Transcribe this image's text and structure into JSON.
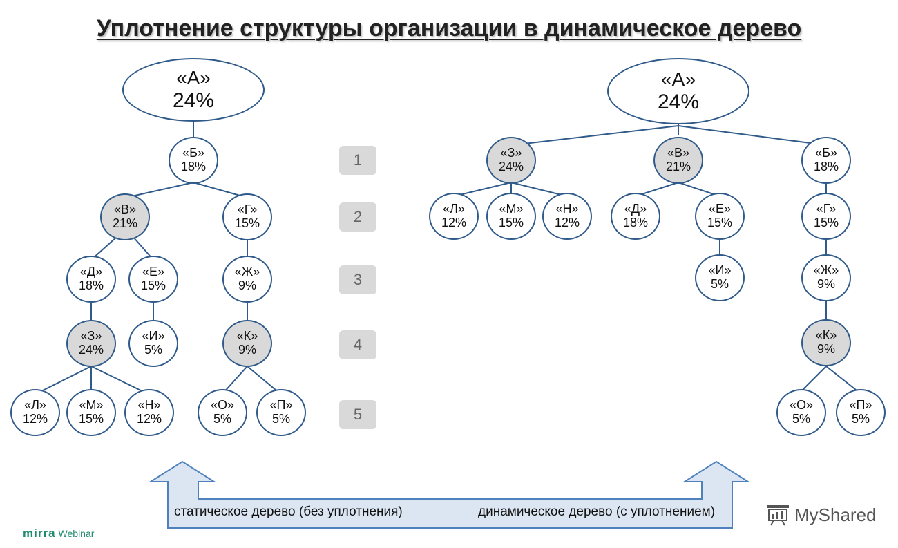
{
  "title": "Уплотнение структуры организации в динамическое дерево",
  "left_tree": {
    "root": {
      "name": "«А»",
      "value": "24%"
    },
    "b": {
      "name": "«Б»",
      "value": "18%"
    },
    "v": {
      "name": "«В»",
      "value": "21%"
    },
    "g": {
      "name": "«Г»",
      "value": "15%"
    },
    "d": {
      "name": "«Д»",
      "value": "18%"
    },
    "e": {
      "name": "«Е»",
      "value": "15%"
    },
    "zh": {
      "name": "«Ж»",
      "value": "9%"
    },
    "z": {
      "name": "«З»",
      "value": "24%"
    },
    "i": {
      "name": "«И»",
      "value": "5%"
    },
    "k": {
      "name": "«К»",
      "value": "9%"
    },
    "l": {
      "name": "«Л»",
      "value": "12%"
    },
    "m": {
      "name": "«М»",
      "value": "15%"
    },
    "n": {
      "name": "«Н»",
      "value": "12%"
    },
    "o": {
      "name": "«О»",
      "value": "5%"
    },
    "p": {
      "name": "«П»",
      "value": "5%"
    }
  },
  "right_tree": {
    "root": {
      "name": "«А»",
      "value": "24%"
    },
    "z": {
      "name": "«З»",
      "value": "24%"
    },
    "v": {
      "name": "«В»",
      "value": "21%"
    },
    "b": {
      "name": "«Б»",
      "value": "18%"
    },
    "l": {
      "name": "«Л»",
      "value": "12%"
    },
    "m": {
      "name": "«М»",
      "value": "15%"
    },
    "n": {
      "name": "«Н»",
      "value": "12%"
    },
    "d": {
      "name": "«Д»",
      "value": "18%"
    },
    "e": {
      "name": "«Е»",
      "value": "15%"
    },
    "g": {
      "name": "«Г»",
      "value": "15%"
    },
    "i": {
      "name": "«И»",
      "value": "5%"
    },
    "zh": {
      "name": "«Ж»",
      "value": "9%"
    },
    "k": {
      "name": "«К»",
      "value": "9%"
    },
    "o": {
      "name": "«О»",
      "value": "5%"
    },
    "p": {
      "name": "«П»",
      "value": "5%"
    }
  },
  "levels": [
    "1",
    "2",
    "3",
    "4",
    "5"
  ],
  "captions": {
    "static": "статическое дерево (без уплотнения)",
    "dynamic": "динамическое дерево (с уплотнением)"
  },
  "branding": {
    "mirra": "mirra",
    "webinar": "Webinar",
    "myshared": "MyShared"
  },
  "colors": {
    "node_border": "#2f5a8a",
    "highlight": "#d9d9d9",
    "arrow_fill": "#dce6f2",
    "arrow_border": "#4f81bd"
  }
}
